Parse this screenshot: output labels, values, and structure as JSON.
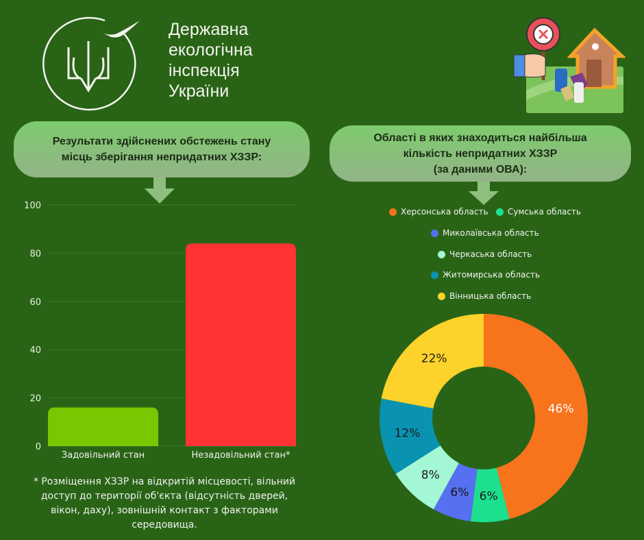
{
  "header": {
    "org_lines": [
      "Державна",
      "екологічна",
      "інспекція",
      "України"
    ]
  },
  "left_panel": {
    "title_lines": [
      "Результати здійснених обстежень стану",
      "місць зберігання непридатних ХЗЗР:"
    ],
    "footnote": "* Розміщення ХЗЗР на відкритій місцевості, вільний доступ до території об'єкта (відсутність дверей, вікон, даху), зовнішній контакт з факторами середовища."
  },
  "right_panel": {
    "title_lines": [
      "Області в яких знаходиться найбільша",
      "кількість непридатних ХЗЗР",
      "(за даними ОВА):"
    ]
  },
  "chart_data": [
    {
      "type": "bar",
      "categories": [
        "Задовільний стан",
        "Незадовільний стан*"
      ],
      "values": [
        16,
        84
      ],
      "colors": [
        "#77c800",
        "#ff3333"
      ],
      "yticks": [
        "0",
        "20",
        "40",
        "60",
        "80",
        "100"
      ],
      "ylim": [
        0,
        100
      ],
      "grid": true
    },
    {
      "type": "pie",
      "donut": true,
      "labels": [
        "Херсонська область",
        "Сумська область",
        "Миколаївська область",
        "Черкаська область",
        "Житомирська область",
        "Вінницька область"
      ],
      "values": [
        46,
        6,
        6,
        8,
        12,
        22
      ],
      "value_labels": [
        "46%",
        "6%",
        "6%",
        "8%",
        "12%",
        "22%"
      ],
      "colors": [
        "#f7741d",
        "#1de08e",
        "#5570f0",
        "#a4f7d4",
        "#0a93b0",
        "#fdd22a"
      ],
      "legend": "top"
    }
  ]
}
